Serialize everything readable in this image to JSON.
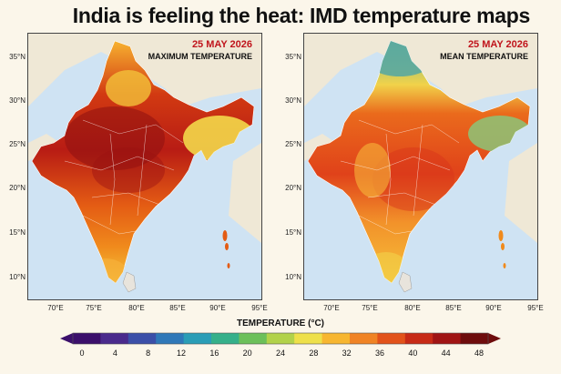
{
  "title": "India is feeling the heat: IMD temperature maps",
  "maps": [
    {
      "id": "max",
      "date": "25 MAY 2026",
      "title": "MAXIMUM TEMPERATURE",
      "palette": [
        "#b81c14",
        "#d23a12",
        "#e45c14",
        "#f08a1c",
        "#f7b230",
        "#f3d84a"
      ]
    },
    {
      "id": "mean",
      "date": "25 MAY 2026",
      "title": "MEAN TEMPERATURE",
      "palette": [
        "#e0421a",
        "#ea6a1c",
        "#f2922a",
        "#f6b83a",
        "#f1d24a",
        "#a8d06a",
        "#6ab79a"
      ]
    }
  ],
  "lat_labels": [
    "35°N",
    "30°N",
    "25°N",
    "20°N",
    "15°N",
    "10°N"
  ],
  "lon_labels": [
    "70°E",
    "75°E",
    "80°E",
    "85°E",
    "90°E",
    "95°E"
  ],
  "colorbar": {
    "title": "TEMPERATURE (°C)",
    "ticks": [
      "0",
      "4",
      "8",
      "12",
      "16",
      "20",
      "24",
      "28",
      "32",
      "36",
      "40",
      "44",
      "48"
    ],
    "colors": [
      "#3b0f6b",
      "#4a2a8c",
      "#3b4fa8",
      "#2f78b8",
      "#2a9db6",
      "#35b08a",
      "#6cc05a",
      "#b2d24a",
      "#eee04a",
      "#f7b630",
      "#f08324",
      "#e2521a",
      "#c72a16",
      "#a01414",
      "#6e0c0c"
    ]
  }
}
